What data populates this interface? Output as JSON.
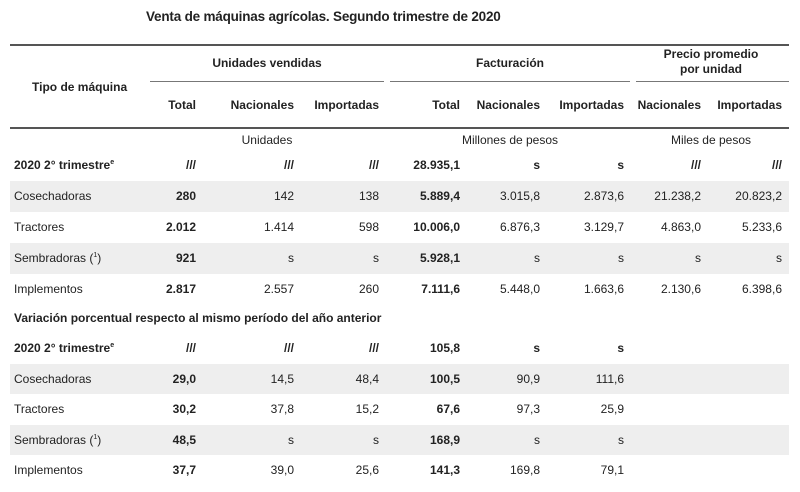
{
  "title": "Venta de máquinas agrícolas. Segundo trimestre de 2020",
  "header": {
    "tipo": "Tipo de máquina",
    "groups": {
      "unidades": "Unidades vendidas",
      "facturacion": "Facturación",
      "precio_line1": "Precio promedio",
      "precio_line2": "por unidad"
    },
    "cols": [
      "Total",
      "Nacionales",
      "Importadas",
      "Total",
      "Nacionales",
      "Importadas",
      "Nacionales",
      "Importadas"
    ],
    "units": {
      "unidades": "Unidades",
      "facturacion": "Millones de pesos",
      "precio": "Miles de pesos"
    }
  },
  "section1": {
    "rows": [
      {
        "label": "2020 2° trimestre",
        "sup": "e",
        "bold": true,
        "values": [
          "///",
          "///",
          "///",
          "28.935,1",
          "s",
          "s",
          "///",
          "///"
        ]
      },
      {
        "label": "Cosechadoras",
        "sup": "",
        "values": [
          "280",
          "142",
          "138",
          "5.889,4",
          "3.015,8",
          "2.873,6",
          "21.238,2",
          "20.823,2"
        ]
      },
      {
        "label": "Tractores",
        "sup": "",
        "values": [
          "2.012",
          "1.414",
          "598",
          "10.006,0",
          "6.876,3",
          "3.129,7",
          "4.863,0",
          "5.233,6"
        ]
      },
      {
        "label": "Sembradoras (",
        "sup": "1",
        "tail": ")",
        "values": [
          "921",
          "s",
          "s",
          "5.928,1",
          "s",
          "s",
          "s",
          "s"
        ]
      },
      {
        "label": "Implementos",
        "sup": "",
        "values": [
          "2.817",
          "2.557",
          "260",
          "7.111,6",
          "5.448,0",
          "1.663,6",
          "2.130,6",
          "6.398,6"
        ]
      }
    ]
  },
  "section2": {
    "title": "Variación porcentual respecto al mismo período del año anterior",
    "rows": [
      {
        "label": "2020 2° trimestre",
        "sup": "e",
        "bold": true,
        "values": [
          "///",
          "///",
          "///",
          "105,8",
          "s",
          "s"
        ]
      },
      {
        "label": "Cosechadoras",
        "sup": "",
        "values": [
          "29,0",
          "14,5",
          "48,4",
          "100,5",
          "90,9",
          "111,6"
        ]
      },
      {
        "label": "Tractores",
        "sup": "",
        "values": [
          "30,2",
          "37,8",
          "15,2",
          "67,6",
          "97,3",
          "25,9"
        ]
      },
      {
        "label": "Sembradoras (",
        "sup": "1",
        "tail": ")",
        "values": [
          "48,5",
          "s",
          "s",
          "168,9",
          "s",
          "s"
        ]
      },
      {
        "label": "Implementos",
        "sup": "",
        "values": [
          "37,7",
          "39,0",
          "25,6",
          "141,3",
          "169,8",
          "79,1"
        ]
      }
    ]
  }
}
